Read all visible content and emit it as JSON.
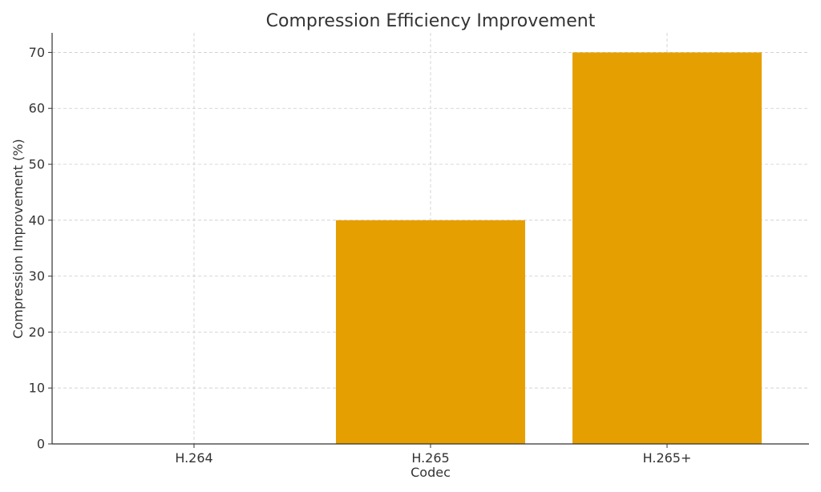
{
  "chart_data": {
    "type": "bar",
    "title": "Compression Efficiency Improvement",
    "xlabel": "Codec",
    "ylabel": "Compression Improvement (%)",
    "categories": [
      "H.264",
      "H.265",
      "H.265+"
    ],
    "values": [
      0,
      40,
      70
    ],
    "ylim": [
      0,
      73.5
    ],
    "yticks": [
      0,
      10,
      20,
      30,
      40,
      50,
      60,
      70
    ],
    "grid": true,
    "bar_color": "#e69f00",
    "legend": "none"
  }
}
